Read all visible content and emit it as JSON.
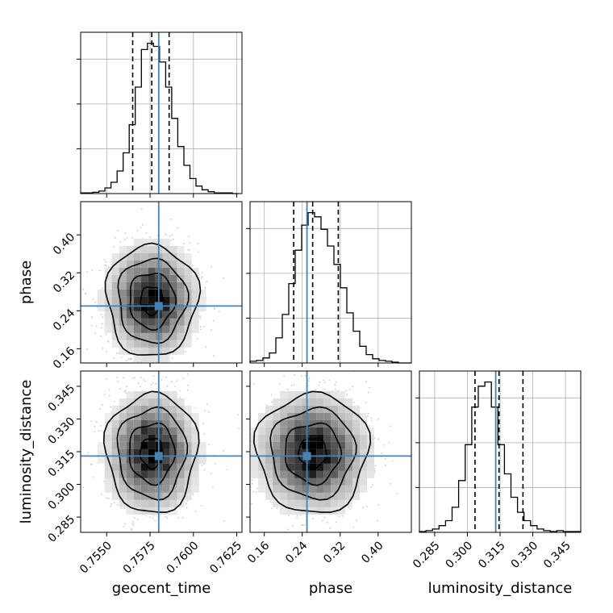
{
  "chart_data": {
    "type": "corner",
    "parameters": [
      "geocent_time",
      "phase",
      "luminosity_distance"
    ],
    "labels": {
      "geocent_time": "geocent_time",
      "phase": "phase",
      "luminosity_distance": "luminosity_distance"
    },
    "ranges": {
      "geocent_time": [
        0.7535,
        0.7628
      ],
      "phase": [
        0.13,
        0.47
      ],
      "luminosity_distance": [
        0.278,
        0.352
      ]
    },
    "ticks": {
      "geocent_time": [
        "0.7550",
        "0.7575",
        "0.7600",
        "0.7625"
      ],
      "phase": [
        "0.16",
        "0.24",
        "0.32",
        "0.40"
      ],
      "luminosity_distance": [
        "0.285",
        "0.300",
        "0.315",
        "0.330",
        "0.345"
      ]
    },
    "truths": {
      "geocent_time": 0.758,
      "phase": 0.25,
      "luminosity_distance": 0.313
    },
    "quantiles": {
      "geocent_time": [
        0.7565,
        0.7576,
        0.7586
      ],
      "phase": [
        0.222,
        0.262,
        0.316
      ],
      "luminosity_distance": [
        0.3035,
        0.3145,
        0.3255
      ]
    },
    "histograms": {
      "geocent_time": {
        "edges_start": 0.7535,
        "edges_step": 0.00035,
        "counts": [
          1,
          1,
          2,
          4,
          9,
          18,
          36,
          65,
          110,
          170,
          230,
          240,
          235,
          210,
          170,
          120,
          75,
          45,
          24,
          12,
          6,
          3,
          1,
          1,
          1,
          0
        ]
      },
      "phase": {
        "edges_start": 0.13,
        "edges_step": 0.0136,
        "counts": [
          2,
          3,
          6,
          12,
          30,
          58,
          95,
          135,
          165,
          180,
          175,
          160,
          140,
          118,
          90,
          60,
          38,
          20,
          10,
          5,
          3,
          2,
          1,
          0,
          0
        ]
      },
      "luminosity_distance": {
        "edges_start": 0.278,
        "edges_step": 0.003,
        "counts": [
          1,
          2,
          4,
          8,
          14,
          30,
          62,
          105,
          150,
          175,
          180,
          150,
          105,
          70,
          42,
          24,
          14,
          8,
          4,
          2,
          1,
          2,
          1,
          1,
          1
        ]
      }
    },
    "colors": {
      "truth": "#4682b4",
      "hist": "#000000",
      "quantile": "#000000",
      "grid": "#b0b0b0",
      "scatter": "#8a8a8a"
    },
    "grid": true,
    "contour_levels": 4
  }
}
